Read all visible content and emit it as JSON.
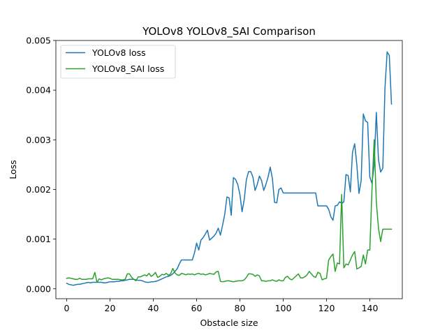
{
  "chart_data": {
    "type": "line",
    "title": "YOLOv8  YOLOv8_SAI  Comparison",
    "xlabel": "Obstacle size",
    "ylabel": "Loss",
    "xlim": [
      -5,
      155
    ],
    "ylim": [
      -0.0002,
      0.005
    ],
    "xticks": [
      0,
      20,
      40,
      60,
      80,
      100,
      120,
      140
    ],
    "yticks": [
      0.0,
      0.001,
      0.002,
      0.003,
      0.004,
      0.005
    ],
    "ytick_labels": [
      "0.000",
      "0.001",
      "0.002",
      "0.003",
      "0.004",
      "0.005"
    ],
    "legend_position": "upper-left",
    "grid": false,
    "series": [
      {
        "name": "YOLOv8 loss",
        "color": "#1f77b4",
        "points": [
          [
            0,
            0.00011
          ],
          [
            1,
            9e-05
          ],
          [
            2,
            8e-05
          ],
          [
            3,
            7e-05
          ],
          [
            4,
            8e-05
          ],
          [
            5,
            9e-05
          ],
          [
            6,
            9e-05
          ],
          [
            7,
            0.0001
          ],
          [
            8,
            0.00011
          ],
          [
            9,
            0.00012
          ],
          [
            10,
            0.00013
          ],
          [
            11,
            0.00012
          ],
          [
            12,
            0.00013
          ],
          [
            13,
            0.00013
          ],
          [
            14,
            0.00013
          ],
          [
            15,
            0.00013
          ],
          [
            16,
            0.00013
          ],
          [
            17,
            0.00012
          ],
          [
            18,
            0.00012
          ],
          [
            19,
            0.00013
          ],
          [
            20,
            0.00014
          ],
          [
            21,
            0.00014
          ],
          [
            22,
            0.00014
          ],
          [
            23,
            0.00015
          ],
          [
            24,
            0.00015
          ],
          [
            25,
            0.00016
          ],
          [
            26,
            0.00016
          ],
          [
            27,
            0.00017
          ],
          [
            28,
            0.00018
          ],
          [
            29,
            0.00019
          ],
          [
            30,
            0.00019
          ],
          [
            31,
            0.00019
          ],
          [
            32,
            0.00018
          ],
          [
            33,
            0.00017
          ],
          [
            34,
            0.00017
          ],
          [
            35,
            0.00016
          ],
          [
            36,
            0.00014
          ],
          [
            37,
            0.00013
          ],
          [
            38,
            0.00013
          ],
          [
            39,
            0.00014
          ],
          [
            40,
            0.00014
          ],
          [
            41,
            0.00015
          ],
          [
            42,
            0.00016
          ],
          [
            43,
            0.00018
          ],
          [
            44,
            0.0002
          ],
          [
            45,
            0.00022
          ],
          [
            46,
            0.00024
          ],
          [
            47,
            0.00025
          ],
          [
            48,
            0.00027
          ],
          [
            49,
            0.0003
          ],
          [
            50,
            0.00035
          ],
          [
            51,
            0.0004
          ],
          [
            52,
            0.0005
          ],
          [
            53,
            0.00058
          ],
          [
            54,
            0.00058
          ],
          [
            55,
            0.00058
          ],
          [
            56,
            0.00058
          ],
          [
            57,
            0.00058
          ],
          [
            58,
            0.00058
          ],
          [
            59,
            0.00072
          ],
          [
            60,
            0.00092
          ],
          [
            61,
            0.00078
          ],
          [
            62,
            0.00098
          ],
          [
            63,
            0.00103
          ],
          [
            64,
            0.0011
          ],
          [
            65,
            0.00118
          ],
          [
            66,
            0.00098
          ],
          [
            67,
            0.00102
          ],
          [
            68,
            0.00106
          ],
          [
            69,
            0.00112
          ],
          [
            70,
            0.00122
          ],
          [
            71,
            0.00108
          ],
          [
            72,
            0.00128
          ],
          [
            73,
            0.0015
          ],
          [
            74,
            0.00185
          ],
          [
            75,
            0.00183
          ],
          [
            76,
            0.00148
          ],
          [
            77,
            0.00224
          ],
          [
            78,
            0.0022
          ],
          [
            79,
            0.0021
          ],
          [
            80,
            0.0019
          ],
          [
            81,
            0.00155
          ],
          [
            82,
            0.0018
          ],
          [
            83,
            0.0022
          ],
          [
            84,
            0.00236
          ],
          [
            85,
            0.00236
          ],
          [
            86,
            0.00225
          ],
          [
            87,
            0.00198
          ],
          [
            88,
            0.0021
          ],
          [
            89,
            0.00227
          ],
          [
            90,
            0.00218
          ],
          [
            91,
            0.00198
          ],
          [
            92,
            0.0021
          ],
          [
            93,
            0.00225
          ],
          [
            94,
            0.00245
          ],
          [
            95,
            0.00222
          ],
          [
            96,
            0.00174
          ],
          [
            97,
            0.00173
          ],
          [
            98,
            0.002
          ],
          [
            99,
            0.00203
          ],
          [
            100,
            0.00193
          ],
          [
            101,
            0.00193
          ],
          [
            102,
            0.00193
          ],
          [
            103,
            0.00193
          ],
          [
            104,
            0.00193
          ],
          [
            105,
            0.00193
          ],
          [
            106,
            0.00193
          ],
          [
            107,
            0.00193
          ],
          [
            108,
            0.00193
          ],
          [
            109,
            0.00193
          ],
          [
            110,
            0.00193
          ],
          [
            111,
            0.00193
          ],
          [
            112,
            0.00193
          ],
          [
            113,
            0.00193
          ],
          [
            114,
            0.00193
          ],
          [
            115,
            0.00193
          ],
          [
            116,
            0.00167
          ],
          [
            117,
            0.00167
          ],
          [
            118,
            0.00167
          ],
          [
            119,
            0.00167
          ],
          [
            120,
            0.00167
          ],
          [
            121,
            0.0016
          ],
          [
            122,
            0.00145
          ],
          [
            123,
            0.00138
          ],
          [
            124,
            0.00167
          ],
          [
            125,
            0.00168
          ],
          [
            126,
            0.00175
          ],
          [
            127,
            0.00172
          ],
          [
            128,
            0.00175
          ],
          [
            129,
            0.0023
          ],
          [
            130,
            0.00228
          ],
          [
            131,
            0.00195
          ],
          [
            132,
            0.00275
          ],
          [
            133,
            0.00292
          ],
          [
            134,
            0.0025
          ],
          [
            135,
            0.00192
          ],
          [
            136,
            0.00218
          ],
          [
            137,
            0.00352
          ],
          [
            138,
            0.00338
          ],
          [
            139,
            0.00335
          ],
          [
            140,
            0.00225
          ],
          [
            141,
            0.00212
          ],
          [
            142,
            0.0025
          ],
          [
            143,
            0.00355
          ],
          [
            144,
            0.0026
          ],
          [
            145,
            0.00235
          ],
          [
            146,
            0.00243
          ],
          [
            147,
            0.00405
          ],
          [
            148,
            0.00477
          ],
          [
            149,
            0.0047
          ],
          [
            150,
            0.00372
          ]
        ]
      },
      {
        "name": "YOLOv8_SAI loss",
        "color": "#2ca02c",
        "points": [
          [
            0,
            0.00021
          ],
          [
            1,
            0.00022
          ],
          [
            2,
            0.00021
          ],
          [
            3,
            0.0002
          ],
          [
            4,
            0.00019
          ],
          [
            5,
            0.00019
          ],
          [
            6,
            0.00021
          ],
          [
            7,
            0.00019
          ],
          [
            8,
            0.00019
          ],
          [
            9,
            0.00019
          ],
          [
            10,
            0.0002
          ],
          [
            11,
            0.0002
          ],
          [
            12,
            0.0002
          ],
          [
            13,
            0.00033
          ],
          [
            14,
            0.00013
          ],
          [
            15,
            0.0002
          ],
          [
            16,
            0.00018
          ],
          [
            17,
            0.0002
          ],
          [
            18,
            0.00021
          ],
          [
            19,
            0.00022
          ],
          [
            20,
            0.00021
          ],
          [
            21,
            0.00019
          ],
          [
            22,
            0.00019
          ],
          [
            23,
            0.00019
          ],
          [
            24,
            0.00019
          ],
          [
            25,
            0.00018
          ],
          [
            26,
            0.00018
          ],
          [
            27,
            0.00019
          ],
          [
            28,
            0.0003
          ],
          [
            29,
            0.0003
          ],
          [
            30,
            0.00023
          ],
          [
            31,
            0.00019
          ],
          [
            32,
            0.00016
          ],
          [
            33,
            0.00024
          ],
          [
            34,
            0.00024
          ],
          [
            35,
            0.00026
          ],
          [
            36,
            0.00028
          ],
          [
            37,
            0.00026
          ],
          [
            38,
            0.00031
          ],
          [
            39,
            0.00025
          ],
          [
            40,
            0.00028
          ],
          [
            41,
            0.00033
          ],
          [
            42,
            0.00023
          ],
          [
            43,
            0.00025
          ],
          [
            44,
            0.00029
          ],
          [
            45,
            0.00028
          ],
          [
            46,
            0.00031
          ],
          [
            47,
            0.00027
          ],
          [
            48,
            0.0003
          ],
          [
            49,
            0.00041
          ],
          [
            50,
            0.00032
          ],
          [
            51,
            0.00028
          ],
          [
            52,
            0.00027
          ],
          [
            53,
            0.00031
          ],
          [
            54,
            0.0003
          ],
          [
            55,
            0.00028
          ],
          [
            56,
            0.0003
          ],
          [
            57,
            0.00029
          ],
          [
            58,
            0.0003
          ],
          [
            59,
            0.00028
          ],
          [
            60,
            0.0003
          ],
          [
            61,
            0.00031
          ],
          [
            62,
            0.00029
          ],
          [
            63,
            0.0003
          ],
          [
            64,
            0.00028
          ],
          [
            65,
            0.00029
          ],
          [
            66,
            0.00031
          ],
          [
            67,
            0.0003
          ],
          [
            68,
            0.00029
          ],
          [
            69,
            0.00034
          ],
          [
            70,
            0.00035
          ],
          [
            71,
            0.00015
          ],
          [
            72,
            0.00014
          ],
          [
            73,
            0.00015
          ],
          [
            74,
            0.00016
          ],
          [
            75,
            0.00016
          ],
          [
            76,
            0.00015
          ],
          [
            77,
            0.00014
          ],
          [
            78,
            0.00015
          ],
          [
            79,
            0.00016
          ],
          [
            80,
            0.00016
          ],
          [
            81,
            0.00016
          ],
          [
            82,
            0.00018
          ],
          [
            83,
            0.00023
          ],
          [
            84,
            0.0003
          ],
          [
            85,
            0.0003
          ],
          [
            86,
            0.00029
          ],
          [
            87,
            0.00025
          ],
          [
            88,
            0.00028
          ],
          [
            89,
            0.00026
          ],
          [
            90,
            0.00016
          ],
          [
            91,
            0.00016
          ],
          [
            92,
            0.00015
          ],
          [
            93,
            0.00016
          ],
          [
            94,
            0.00016
          ],
          [
            95,
            0.00018
          ],
          [
            96,
            0.00016
          ],
          [
            97,
            0.00015
          ],
          [
            98,
            0.00018
          ],
          [
            99,
            0.00016
          ],
          [
            100,
            0.00016
          ],
          [
            101,
            0.00023
          ],
          [
            102,
            0.00025
          ],
          [
            103,
            0.0002
          ],
          [
            104,
            0.00018
          ],
          [
            105,
            0.00022
          ],
          [
            106,
            0.00026
          ],
          [
            107,
            0.0003
          ],
          [
            108,
            0.00022
          ],
          [
            109,
            0.00022
          ],
          [
            110,
            0.00024
          ],
          [
            111,
            0.00028
          ],
          [
            112,
            0.00035
          ],
          [
            113,
            0.0003
          ],
          [
            114,
            0.00025
          ],
          [
            115,
            0.00023
          ],
          [
            116,
            0.00033
          ],
          [
            117,
            0.00031
          ],
          [
            118,
            0.00018
          ],
          [
            119,
            0.0002
          ],
          [
            120,
            0.00021
          ],
          [
            121,
            0.00058
          ],
          [
            122,
            0.00065
          ],
          [
            123,
            0.0007
          ],
          [
            124,
            0.00035
          ],
          [
            125,
            0.00052
          ],
          [
            126,
            0.0005
          ],
          [
            127,
            0.0019
          ],
          [
            128,
            0.00042
          ],
          [
            129,
            0.0005
          ],
          [
            130,
            0.00048
          ],
          [
            131,
            0.00058
          ],
          [
            132,
            0.00068
          ],
          [
            133,
            0.00075
          ],
          [
            134,
            0.0004
          ],
          [
            135,
            0.00042
          ],
          [
            136,
            0.00045
          ],
          [
            137,
            0.00068
          ],
          [
            138,
            0.0005
          ],
          [
            139,
            0.00078
          ],
          [
            140,
            0.00078
          ],
          [
            141,
            0.002
          ],
          [
            142,
            0.003
          ],
          [
            143,
            0.00175
          ],
          [
            144,
            0.00122
          ],
          [
            145,
            0.00095
          ],
          [
            146,
            0.0012
          ],
          [
            147,
            0.0012
          ],
          [
            148,
            0.0012
          ],
          [
            149,
            0.0012
          ],
          [
            150,
            0.0012
          ]
        ]
      }
    ]
  }
}
